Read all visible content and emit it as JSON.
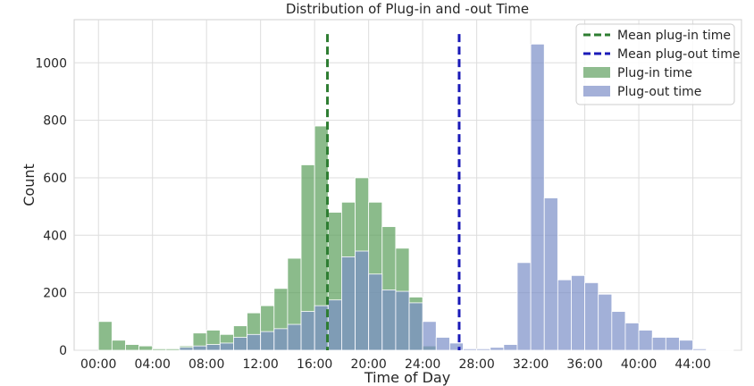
{
  "chart_data": {
    "type": "bar",
    "title": "Distribution of Plug-in and -out Time",
    "xlabel": "Time of Day",
    "ylabel": "Count",
    "xlim": [
      -1.8,
      47.6
    ],
    "ylim": [
      0,
      1150
    ],
    "grid": true,
    "bin_width_hours": 1,
    "x_ticks": [
      0,
      4,
      8,
      12,
      16,
      20,
      24,
      28,
      32,
      36,
      40,
      44
    ],
    "x_tick_labels": [
      "00:00",
      "04:00",
      "08:00",
      "12:00",
      "16:00",
      "20:00",
      "24:00",
      "28:00",
      "32:00",
      "36:00",
      "40:00",
      "44:00"
    ],
    "y_ticks": [
      0,
      200,
      400,
      600,
      800,
      1000
    ],
    "y_tick_labels": [
      "0",
      "200",
      "400",
      "600",
      "800",
      "1000"
    ],
    "legend_position": "top-right",
    "legend": [
      {
        "label": "Mean plug-in time",
        "kind": "line",
        "color": "#2e7d32"
      },
      {
        "label": "Mean plug-out time",
        "kind": "line",
        "color": "#1a1ab8"
      },
      {
        "label": "Plug-in time",
        "kind": "patch",
        "color": "#8fbc8f"
      },
      {
        "label": "Plug-out time",
        "kind": "patch",
        "color": "#a4b0d8"
      }
    ],
    "series": [
      {
        "name": "Plug-in time",
        "color": "#5a9e5a",
        "opacity": 0.7,
        "bin_starts": [
          0,
          1,
          2,
          3,
          4,
          5,
          6,
          7,
          8,
          9,
          10,
          11,
          12,
          13,
          14,
          15,
          16,
          17,
          18,
          19,
          20,
          21,
          22,
          23,
          24
        ],
        "values": [
          100,
          35,
          20,
          15,
          5,
          5,
          15,
          60,
          70,
          55,
          85,
          130,
          155,
          215,
          320,
          645,
          780,
          480,
          515,
          600,
          515,
          430,
          355,
          185,
          15
        ]
      },
      {
        "name": "Plug-out time",
        "color": "#7b8ec8",
        "opacity": 0.7,
        "bin_starts": [
          6,
          7,
          8,
          9,
          10,
          11,
          12,
          13,
          14,
          15,
          16,
          17,
          18,
          19,
          20,
          21,
          22,
          23,
          24,
          25,
          26,
          27,
          28,
          29,
          30,
          31,
          32,
          33,
          34,
          35,
          36,
          37,
          38,
          39,
          40,
          41,
          42,
          43,
          44,
          45,
          46
        ],
        "values": [
          10,
          15,
          20,
          25,
          45,
          55,
          65,
          75,
          90,
          135,
          155,
          175,
          325,
          345,
          265,
          210,
          205,
          165,
          100,
          45,
          25,
          5,
          5,
          10,
          20,
          305,
          1065,
          530,
          245,
          260,
          235,
          195,
          135,
          95,
          70,
          45,
          45,
          35,
          5,
          2,
          2
        ]
      }
    ],
    "mean_lines": [
      {
        "name": "Mean plug-in time",
        "x": 16.95,
        "y_top": 1100,
        "color": "#2e7d32"
      },
      {
        "name": "Mean plug-out time",
        "x": 26.7,
        "y_top": 1100,
        "color": "#1a1ab8"
      }
    ]
  }
}
